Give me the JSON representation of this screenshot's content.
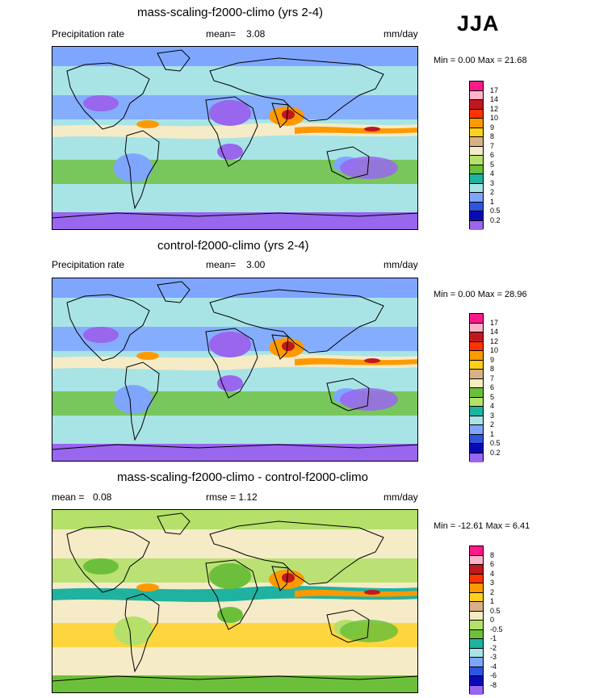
{
  "season": "JJA",
  "panels": [
    {
      "title": "mass-scaling-f2000-climo (yrs 2-4)",
      "left_label": "Precipitation rate",
      "mean_label": "mean=",
      "mean_value": "3.08",
      "units": "mm/day",
      "minmax": "Min =   0.00 Max =  21.68",
      "levels": [
        "17",
        "14",
        "12",
        "10",
        "9",
        "8",
        "7",
        "6",
        "5",
        "4",
        "3",
        "2",
        "1",
        "0.5",
        "0.2"
      ],
      "colors": [
        "#ff1a8c",
        "#ffb3c6",
        "#c0181f",
        "#ff3300",
        "#ff9900",
        "#ffd11a",
        "#d8b088",
        "#f5ebc6",
        "#b5e06a",
        "#6cbf3a",
        "#20b2a0",
        "#a8e4e6",
        "#7fa6ff",
        "#2e55e0",
        "#0a0ab4",
        "#9966ee"
      ],
      "map_colors": {
        "ocean": "#a8e4e6",
        "dry": "#7fa6ff",
        "desert": "#9966ee",
        "wet": "#6cbf3a",
        "heavy": "#ff9900",
        "peak": "#c0181f",
        "mid": "#f5ebc6"
      }
    },
    {
      "title": "control-f2000-climo (yrs 2-4)",
      "left_label": "Precipitation rate",
      "mean_label": "mean=",
      "mean_value": "3.00",
      "units": "mm/day",
      "minmax": "Min =   0.00 Max =  28.96",
      "levels": [
        "17",
        "14",
        "12",
        "10",
        "9",
        "8",
        "7",
        "6",
        "5",
        "4",
        "3",
        "2",
        "1",
        "0.5",
        "0.2"
      ],
      "colors": [
        "#ff1a8c",
        "#ffb3c6",
        "#c0181f",
        "#ff3300",
        "#ff9900",
        "#ffd11a",
        "#d8b088",
        "#f5ebc6",
        "#6cbf3a",
        "#b5e06a",
        "#20b2a0",
        "#a8e4e6",
        "#7fa6ff",
        "#2e55e0",
        "#0a0ab4",
        "#9966ee"
      ],
      "map_colors": {
        "ocean": "#a8e4e6",
        "dry": "#7fa6ff",
        "desert": "#9966ee",
        "wet": "#6cbf3a",
        "heavy": "#ff9900",
        "peak": "#c0181f",
        "mid": "#f5ebc6"
      }
    },
    {
      "title": "mass-scaling-f2000-climo - control-f2000-climo",
      "left_label": "mean =",
      "mean_label": "0.08",
      "mean_value": "rmse =    1.12",
      "units": "mm/day",
      "minmax": "Min = -12.61 Max =   6.41",
      "levels": [
        "8",
        "6",
        "4",
        "3",
        "2",
        "1",
        "0.5",
        "0",
        "-0.5",
        "-1",
        "-2",
        "-3",
        "-4",
        "-6",
        "-8"
      ],
      "colors": [
        "#ff1a8c",
        "#ffb3c6",
        "#c0181f",
        "#ff3300",
        "#ff9900",
        "#ffd11a",
        "#d8b088",
        "#f5ebc6",
        "#b5e06a",
        "#6cbf3a",
        "#20b2a0",
        "#a8e4e6",
        "#7fa6ff",
        "#2e55e0",
        "#0a0ab4",
        "#9966ee"
      ],
      "map_colors": {
        "ocean": "#f5ebc6",
        "dry": "#b5e06a",
        "desert": "#6cbf3a",
        "wet": "#ffd11a",
        "heavy": "#ff9900",
        "peak": "#c0181f",
        "mid": "#20b2a0"
      }
    }
  ]
}
